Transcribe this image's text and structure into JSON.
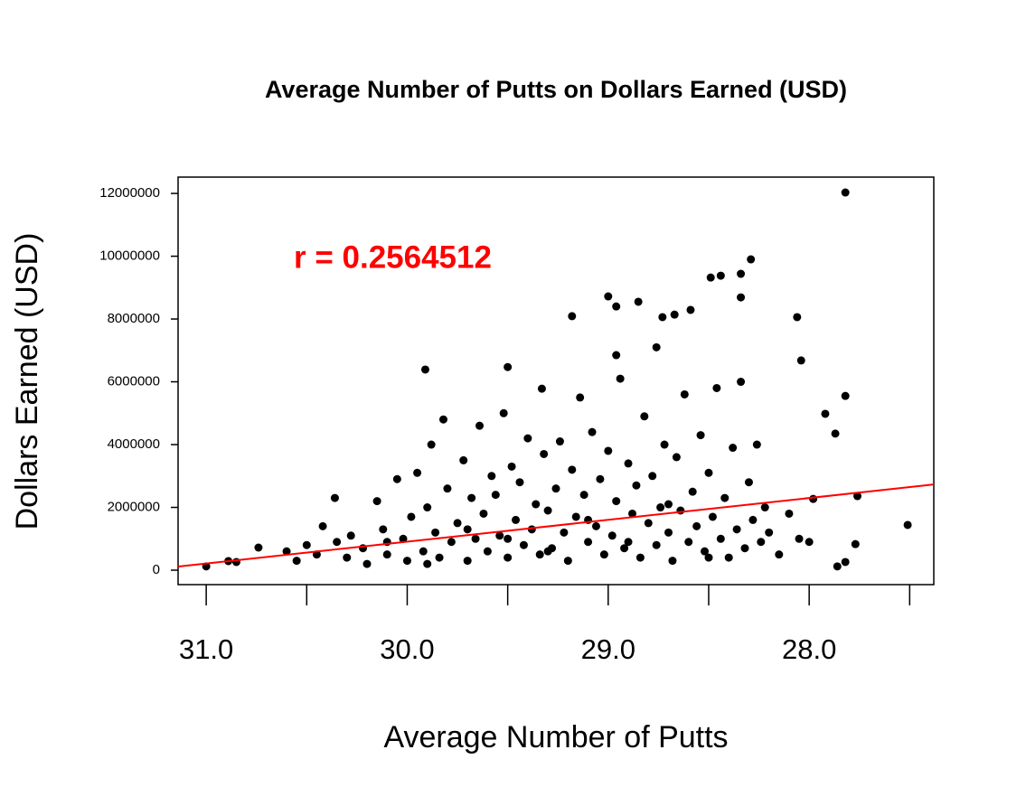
{
  "chart_data": {
    "type": "scatter",
    "title": "Average Number of Putts on Dollars Earned (USD)",
    "x_label": "Average Number of Putts",
    "y_label": "Dollars Earned (USD)",
    "annotation": {
      "text": "r = 0.2564512",
      "color": "#ff0000"
    },
    "xlim": [
      31.14,
      27.38
    ],
    "ylim": [
      -460000,
      12520000
    ],
    "xticks": [
      {
        "value": 31,
        "label": "31.0"
      },
      {
        "value": 30,
        "label": "30.0"
      },
      {
        "value": 29,
        "label": "29.0"
      },
      {
        "value": 28,
        "label": "28.0"
      }
    ],
    "xtick_marks": [
      31,
      30.5,
      30,
      29.5,
      29,
      28.5,
      28,
      27.5
    ],
    "yticks": [
      0,
      2000000,
      4000000,
      6000000,
      8000000,
      10000000,
      12000000
    ],
    "fit_line": {
      "color": "#ff0000",
      "x": [
        31.14,
        27.38
      ],
      "y": [
        115000,
        2730000
      ]
    },
    "series": [
      {
        "color": "#000000",
        "x": [
          27.82,
          28.29,
          28.34,
          28.44,
          28.49,
          28.34,
          29.0,
          28.85,
          28.96,
          29.18,
          28.73,
          28.67,
          28.59,
          28.06,
          28.04,
          29.91,
          29.5,
          28.96,
          28.76,
          29.33,
          27.82,
          27.92,
          27.51,
          27.76,
          31.0,
          30.89,
          30.85,
          30.74,
          30.36,
          28.0,
          27.86,
          27.82,
          27.77,
          27.98,
          27.87,
          30.6,
          30.55,
          30.5,
          30.45,
          30.42,
          30.35,
          30.3,
          30.28,
          30.22,
          30.2,
          30.15,
          30.12,
          30.1,
          30.05,
          30.02,
          30.0,
          29.98,
          29.95,
          29.92,
          29.9,
          29.88,
          29.86,
          29.84,
          29.82,
          29.8,
          29.78,
          29.75,
          29.72,
          29.7,
          29.68,
          29.66,
          29.64,
          29.62,
          29.6,
          29.58,
          29.56,
          29.54,
          29.52,
          29.5,
          29.48,
          29.46,
          29.44,
          29.42,
          29.4,
          29.38,
          29.36,
          29.34,
          29.32,
          29.3,
          29.28,
          29.26,
          29.24,
          29.22,
          29.2,
          29.18,
          29.16,
          29.14,
          29.12,
          29.1,
          29.08,
          29.06,
          29.04,
          29.02,
          29.0,
          28.98,
          28.96,
          28.94,
          28.92,
          28.9,
          28.88,
          28.86,
          28.84,
          28.82,
          28.8,
          28.78,
          28.76,
          28.74,
          28.72,
          28.7,
          28.68,
          28.66,
          28.64,
          28.62,
          28.6,
          28.58,
          28.56,
          28.54,
          28.52,
          28.5,
          28.48,
          28.46,
          28.44,
          28.42,
          28.4,
          28.38,
          28.36,
          28.34,
          28.32,
          28.3,
          28.28,
          28.26,
          28.24,
          28.22,
          28.2,
          28.15,
          28.1,
          28.05,
          29.5,
          29.3,
          29.1,
          28.9,
          28.7,
          28.5,
          29.7,
          29.9,
          30.1
        ],
        "values": [
          12030000,
          9900000,
          9440000,
          9380000,
          9320000,
          8690000,
          8720000,
          8550000,
          8400000,
          8090000,
          8060000,
          8140000,
          8290000,
          8060000,
          6680000,
          6390000,
          6470000,
          6850000,
          7100000,
          5780000,
          5550000,
          4980000,
          1440000,
          2360000,
          120000,
          290000,
          260000,
          720000,
          2300000,
          900000,
          120000,
          260000,
          830000,
          2270000,
          4350000,
          600000,
          300000,
          800000,
          500000,
          1400000,
          900000,
          400000,
          1100000,
          700000,
          200000,
          2200000,
          1300000,
          500000,
          2900000,
          1000000,
          300000,
          1700000,
          3100000,
          600000,
          2000000,
          4000000,
          1200000,
          400000,
          4800000,
          2600000,
          900000,
          1500000,
          3500000,
          300000,
          2300000,
          1000000,
          4600000,
          1800000,
          600000,
          3000000,
          2400000,
          1100000,
          5000000,
          400000,
          3300000,
          1600000,
          2800000,
          800000,
          4200000,
          1300000,
          2100000,
          500000,
          3700000,
          1900000,
          700000,
          2600000,
          4100000,
          1200000,
          300000,
          3200000,
          1700000,
          5500000,
          2400000,
          900000,
          4400000,
          1400000,
          2900000,
          500000,
          3800000,
          1100000,
          2200000,
          6100000,
          700000,
          3400000,
          1800000,
          2700000,
          400000,
          4900000,
          1500000,
          3000000,
          800000,
          2000000,
          4000000,
          1200000,
          300000,
          3600000,
          1900000,
          5600000,
          900000,
          2500000,
          1400000,
          4300000,
          600000,
          3100000,
          1700000,
          5800000,
          1000000,
          2300000,
          400000,
          3900000,
          1300000,
          6000000,
          700000,
          2800000,
          1600000,
          4000000,
          900000,
          2000000,
          1200000,
          500000,
          1800000,
          1000000,
          1000000,
          600000,
          1600000,
          900000,
          2100000,
          400000,
          1300000,
          200000,
          900000
        ]
      }
    ]
  }
}
